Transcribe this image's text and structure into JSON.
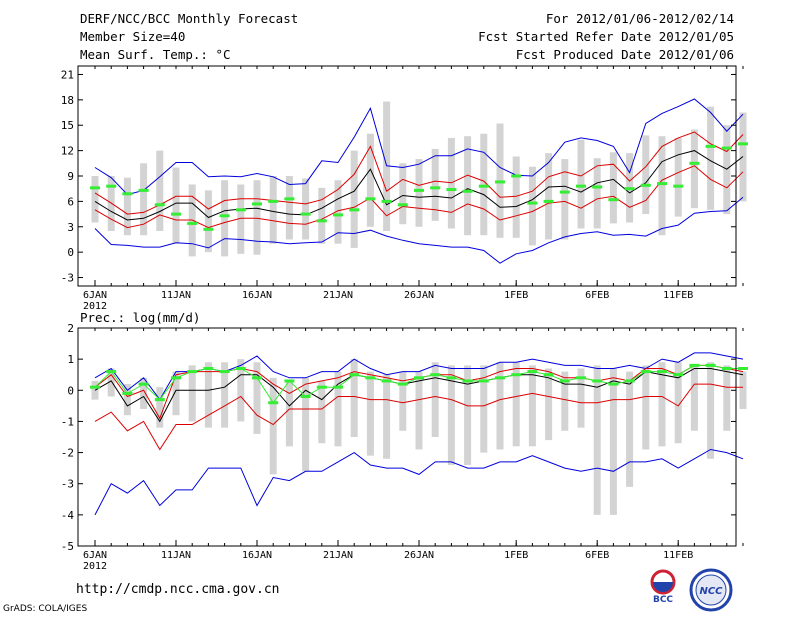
{
  "header": {
    "title": "DERF/NCC/BCC Monthly Forecast",
    "member_size": "Member Size=40",
    "variable": "Mean Surf. Temp.: °C",
    "forecast_period": "For 2012/01/06-2012/02/14",
    "started_refer": "Fcst Started Refer Date 2012/01/05",
    "produced": "Fcst Produced Date 2012/01/06"
  },
  "footer": {
    "url": "http://cmdp.ncc.cma.gov.cn",
    "grads": "GrADS: COLA/IGES",
    "logo_bcc": "BCC",
    "logo_ncc": "NCC"
  },
  "colors": {
    "envelope": "#0000dd",
    "spread": "#dd0000",
    "mean": "#000000",
    "median_mark": "#33ee33",
    "bar": "#d3d3d3"
  },
  "chart_data": [
    {
      "type": "line",
      "title": "Mean Surf. Temp.: °C",
      "x_day_index": "0 = 6JAN 2012 ... 39 = 14FEB",
      "ylim": [
        -4,
        22
      ],
      "yticks": [
        21,
        18,
        15,
        12,
        9,
        6,
        3,
        0,
        -3
      ],
      "xticks": [
        {
          "day": 0,
          "label": "6JAN",
          "sub": "2012"
        },
        {
          "day": 5,
          "label": "11JAN"
        },
        {
          "day": 10,
          "label": "16JAN"
        },
        {
          "day": 15,
          "label": "21JAN"
        },
        {
          "day": 20,
          "label": "26JAN"
        },
        {
          "day": 26,
          "label": "1FEB"
        },
        {
          "day": 31,
          "label": "6FEB"
        },
        {
          "day": 36,
          "label": "11FEB"
        }
      ],
      "series": [
        {
          "name": "max",
          "color": "#0000dd",
          "values": [
            10,
            8.8,
            6.8,
            7.3,
            8.9,
            10.6,
            10.6,
            8.9,
            9,
            8.9,
            9.3,
            8.9,
            8,
            8.1,
            10.8,
            10.6,
            13.6,
            17,
            10.2,
            10,
            10.4,
            11.4,
            11.4,
            12.2,
            11.8,
            10,
            9.1,
            9,
            10.6,
            13,
            13.5,
            13.2,
            12.5,
            9.4,
            15.2,
            16.4,
            17.2,
            18.1,
            16.5,
            14.3,
            16.3
          ]
        },
        {
          "name": "upper",
          "color": "#dd0000",
          "values": [
            7,
            5.8,
            4.5,
            4.7,
            5.6,
            6.6,
            6.6,
            5.1,
            6.1,
            6.3,
            6.3,
            6.1,
            5.9,
            5.7,
            6.2,
            7.4,
            9.2,
            12.5,
            7.2,
            8.6,
            7.9,
            8.4,
            8.2,
            9.1,
            8.4,
            6.5,
            6.6,
            7.2,
            8.9,
            9.5,
            9,
            10.2,
            10.4,
            8.4,
            10.1,
            12.5,
            13.5,
            14.2,
            12.8,
            11.9,
            13.9
          ]
        },
        {
          "name": "mean",
          "color": "#000000",
          "values": [
            6,
            4.8,
            3.8,
            4,
            4.8,
            5.8,
            5.8,
            4.1,
            4.9,
            5.1,
            5.2,
            4.8,
            4.5,
            4.4,
            5.2,
            6.3,
            7.2,
            9.8,
            5.6,
            6.7,
            6.5,
            6.6,
            6.4,
            7.5,
            6.8,
            5.3,
            5.4,
            6.2,
            7.7,
            7.8,
            7.1,
            8.2,
            8.6,
            7,
            8.2,
            10.7,
            11.5,
            12,
            10.8,
            9.8,
            11.3
          ]
        },
        {
          "name": "lower",
          "color": "#dd0000",
          "values": [
            5,
            3.9,
            2.9,
            3.3,
            4.4,
            3.8,
            3.8,
            2.9,
            3.5,
            4,
            4,
            3.7,
            3.4,
            3.3,
            3.9,
            4.9,
            5.3,
            6.4,
            4.3,
            5.4,
            5.2,
            5,
            4.7,
            5.7,
            5.1,
            3.8,
            4.3,
            4.8,
            5.8,
            6,
            5.2,
            6.3,
            6.6,
            5.3,
            6.1,
            8.5,
            9.4,
            10.2,
            8.6,
            7.6,
            9.5
          ]
        },
        {
          "name": "min",
          "color": "#0000dd",
          "values": [
            2.8,
            0.9,
            0.8,
            0.6,
            0.6,
            1.1,
            1,
            0.5,
            1.6,
            1.5,
            1.3,
            1.2,
            1,
            1.1,
            1.2,
            2.3,
            2.2,
            2.6,
            1.9,
            1.4,
            1,
            0.8,
            0.6,
            0.6,
            0.2,
            -1.3,
            -0.2,
            0.2,
            1.1,
            1.8,
            2.2,
            2.4,
            2,
            2.1,
            1.9,
            2.8,
            3.2,
            4.6,
            4.8,
            4.9,
            6.5
          ]
        }
      ],
      "median_marks": [
        7.6,
        7.8,
        6.9,
        7.3,
        5.6,
        4.5,
        3.4,
        2.7,
        4.3,
        5,
        5.7,
        6,
        6.3,
        4.5,
        3.7,
        4.4,
        5,
        6.3,
        6,
        5.6,
        7.3,
        7.6,
        7.4,
        7.2,
        7.8,
        8.3,
        9,
        5.8,
        6,
        7.1,
        7.8,
        7.7,
        6.2,
        7.5,
        7.9,
        8.1,
        7.8,
        10.5,
        12.5,
        12.3,
        12.8
      ],
      "bars": [
        [
          3.5,
          9
        ],
        [
          2.5,
          9
        ],
        [
          2,
          8.8
        ],
        [
          2,
          10.5
        ],
        [
          2.5,
          12
        ],
        [
          1,
          10
        ],
        [
          -0.5,
          8
        ],
        [
          0,
          7.3
        ],
        [
          -0.5,
          8.5
        ],
        [
          -0.2,
          8
        ],
        [
          -0.3,
          8.5
        ],
        [
          1,
          9
        ],
        [
          1.5,
          9
        ],
        [
          1.5,
          8.7
        ],
        [
          1,
          7.6
        ],
        [
          1,
          8.5
        ],
        [
          0.5,
          12
        ],
        [
          3,
          14
        ],
        [
          2.5,
          17.8
        ],
        [
          3.3,
          10.5
        ],
        [
          3,
          11
        ],
        [
          3.7,
          12.2
        ],
        [
          2.8,
          13.5
        ],
        [
          2,
          13.7
        ],
        [
          2,
          14
        ],
        [
          1.7,
          15.2
        ],
        [
          1.7,
          11.3
        ],
        [
          0.8,
          10.1
        ],
        [
          1.5,
          11.7
        ],
        [
          1.5,
          11
        ],
        [
          2.8,
          13.3
        ],
        [
          2.8,
          11.1
        ],
        [
          3.4,
          11.8
        ],
        [
          3.5,
          11.7
        ],
        [
          4.5,
          13.8
        ],
        [
          2,
          13.7
        ],
        [
          4.2,
          13.5
        ],
        [
          5.2,
          14.5
        ],
        [
          5,
          17.2
        ],
        [
          4.5,
          15
        ],
        [
          6,
          16.5
        ]
      ]
    },
    {
      "type": "line",
      "title": "Prec.: log(mm/d)",
      "x_day_index": "0 = 6JAN 2012 ... 39 = 14FEB",
      "ylim": [
        -5,
        2
      ],
      "yticks": [
        2,
        1,
        0,
        -1,
        -2,
        -3,
        -4,
        -5
      ],
      "xticks": [
        {
          "day": 0,
          "label": "6JAN",
          "sub": "2012"
        },
        {
          "day": 5,
          "label": "11JAN"
        },
        {
          "day": 10,
          "label": "16JAN"
        },
        {
          "day": 15,
          "label": "21JAN"
        },
        {
          "day": 20,
          "label": "26JAN"
        },
        {
          "day": 26,
          "label": "1FEB"
        },
        {
          "day": 31,
          "label": "6FEB"
        },
        {
          "day": 36,
          "label": "11FEB"
        }
      ],
      "series": [
        {
          "name": "max",
          "color": "#0000dd",
          "values": [
            0.4,
            0.7,
            0,
            0.4,
            -0.3,
            0.6,
            0.6,
            0.7,
            0.6,
            0.8,
            1.1,
            0.6,
            0.4,
            0.4,
            0.6,
            0.6,
            1,
            0.7,
            0.5,
            0.6,
            0.6,
            0.8,
            0.7,
            0.7,
            0.7,
            0.9,
            0.9,
            1,
            0.9,
            0.8,
            0.8,
            0.7,
            0.7,
            0.8,
            0.7,
            1,
            0.9,
            1.2,
            1.2,
            1.1,
            1
          ]
        },
        {
          "name": "upper",
          "color": "#dd0000",
          "values": [
            0.1,
            0.5,
            -0.2,
            0,
            -0.9,
            0.5,
            0.6,
            0.6,
            0.6,
            0.7,
            0.6,
            0.2,
            -0.1,
            0.2,
            0.3,
            0.4,
            0.6,
            0.5,
            0.4,
            0.3,
            0.4,
            0.5,
            0.5,
            0.3,
            0.4,
            0.6,
            0.7,
            0.7,
            0.6,
            0.4,
            0.4,
            0.3,
            0.4,
            0.3,
            0.7,
            0.7,
            0.5,
            0.8,
            0.8,
            0.7,
            0.6
          ]
        },
        {
          "name": "mean",
          "color": "#000000",
          "values": [
            0,
            0.3,
            -0.5,
            -0.2,
            -1,
            0,
            0,
            0,
            0.1,
            0.5,
            0.5,
            0.1,
            -0.5,
            0,
            -0.3,
            0.2,
            0.5,
            0.4,
            0.3,
            0.2,
            0.3,
            0.4,
            0.3,
            0.2,
            0.3,
            0.4,
            0.5,
            0.5,
            0.4,
            0.2,
            0.2,
            0.1,
            0.3,
            0.2,
            0.6,
            0.5,
            0.4,
            0.7,
            0.7,
            0.6,
            0.5
          ]
        },
        {
          "name": "lower",
          "color": "#dd0000",
          "values": [
            -1,
            -0.7,
            -1.3,
            -1,
            -1.9,
            -1.1,
            -1.1,
            -0.8,
            -0.5,
            -0.2,
            -0.8,
            -1.1,
            -0.6,
            -0.6,
            -0.6,
            -0.2,
            -0.2,
            -0.3,
            -0.3,
            -0.4,
            -0.3,
            -0.2,
            -0.3,
            -0.5,
            -0.5,
            -0.3,
            -0.2,
            -0.1,
            -0.2,
            -0.3,
            -0.4,
            -0.4,
            -0.3,
            -0.3,
            -0.2,
            -0.2,
            -0.5,
            0.2,
            0.2,
            0.1,
            0.1
          ]
        },
        {
          "name": "min",
          "color": "#0000dd",
          "values": [
            -4,
            -3,
            -3.3,
            -2.9,
            -3.7,
            -3.2,
            -3.2,
            -2.5,
            -2.5,
            -2.5,
            -3.7,
            -2.8,
            -2.9,
            -2.6,
            -2.6,
            -2.3,
            -2,
            -2.4,
            -2.5,
            -2.5,
            -2.7,
            -2.3,
            -2.3,
            -2.5,
            -2.5,
            -2.3,
            -2.3,
            -2.1,
            -2.3,
            -2.5,
            -2.6,
            -2.5,
            -2.6,
            -2.3,
            -2.3,
            -2.2,
            -2.5,
            -2.2,
            -1.9,
            -2,
            -2.2
          ]
        },
        {
          "name": "median_line",
          "color": "#33ee33",
          "values": [
            0.1,
            0.6,
            -0.1,
            0.2,
            -0.3,
            0.4,
            0.6,
            0.7,
            0.6,
            0.7,
            0.4,
            -0.4,
            0.3,
            -0.2,
            0.1,
            0.1,
            0.5,
            0.4,
            0.3,
            0.2,
            0.4,
            0.5,
            0.4,
            0.3,
            0.3,
            0.4,
            0.5,
            0.6,
            0.5,
            0.3,
            0.4,
            0.3,
            0.2,
            0.3,
            0.6,
            0.6,
            0.5,
            0.8,
            0.8,
            0.7,
            0.7
          ]
        }
      ],
      "median_marks": [
        0.1,
        0.6,
        -0.1,
        0.2,
        -0.3,
        0.4,
        0.6,
        0.7,
        0.6,
        0.7,
        0.4,
        -0.4,
        0.3,
        -0.2,
        0.1,
        0.1,
        0.5,
        0.4,
        0.3,
        0.2,
        0.4,
        0.5,
        0.4,
        0.3,
        0.3,
        0.4,
        0.5,
        0.6,
        0.5,
        0.3,
        0.4,
        0.3,
        0.2,
        0.3,
        0.6,
        0.6,
        0.5,
        0.8,
        0.8,
        0.7,
        0.7
      ],
      "bars": [
        [
          -0.3,
          0.3
        ],
        [
          -0.2,
          0.7
        ],
        [
          -0.8,
          0.2
        ],
        [
          -0.6,
          0.4
        ],
        [
          -1.2,
          0.1
        ],
        [
          -0.8,
          0.6
        ],
        [
          -1,
          0.8
        ],
        [
          -1.2,
          0.9
        ],
        [
          -1.2,
          0.9
        ],
        [
          -1,
          1
        ],
        [
          -1.4,
          0.9
        ],
        [
          -2.7,
          0.4
        ],
        [
          -1.8,
          0.3
        ],
        [
          -2.6,
          0.4
        ],
        [
          -1.7,
          0.3
        ],
        [
          -1.8,
          0.6
        ],
        [
          -1.5,
          1
        ],
        [
          -2.1,
          0.6
        ],
        [
          -2.2,
          0.5
        ],
        [
          -1.3,
          0.6
        ],
        [
          -1.9,
          0.6
        ],
        [
          -1.5,
          0.9
        ],
        [
          -2.4,
          0.8
        ],
        [
          -2.4,
          0.8
        ],
        [
          -2,
          0.8
        ],
        [
          -1.9,
          0.9
        ],
        [
          -1.8,
          0.9
        ],
        [
          -1.8,
          0.8
        ],
        [
          -1.6,
          0.7
        ],
        [
          -1.3,
          0.6
        ],
        [
          -1.2,
          0.7
        ],
        [
          -4,
          0.8
        ],
        [
          -4,
          0.7
        ],
        [
          -3.1,
          0.6
        ],
        [
          -1.9,
          0.8
        ],
        [
          -1.8,
          0.9
        ],
        [
          -1.7,
          0.9
        ],
        [
          -1.3,
          0.8
        ],
        [
          -2.2,
          0.9
        ],
        [
          -1.3,
          0.8
        ],
        [
          -0.6,
          0.6
        ]
      ]
    }
  ]
}
